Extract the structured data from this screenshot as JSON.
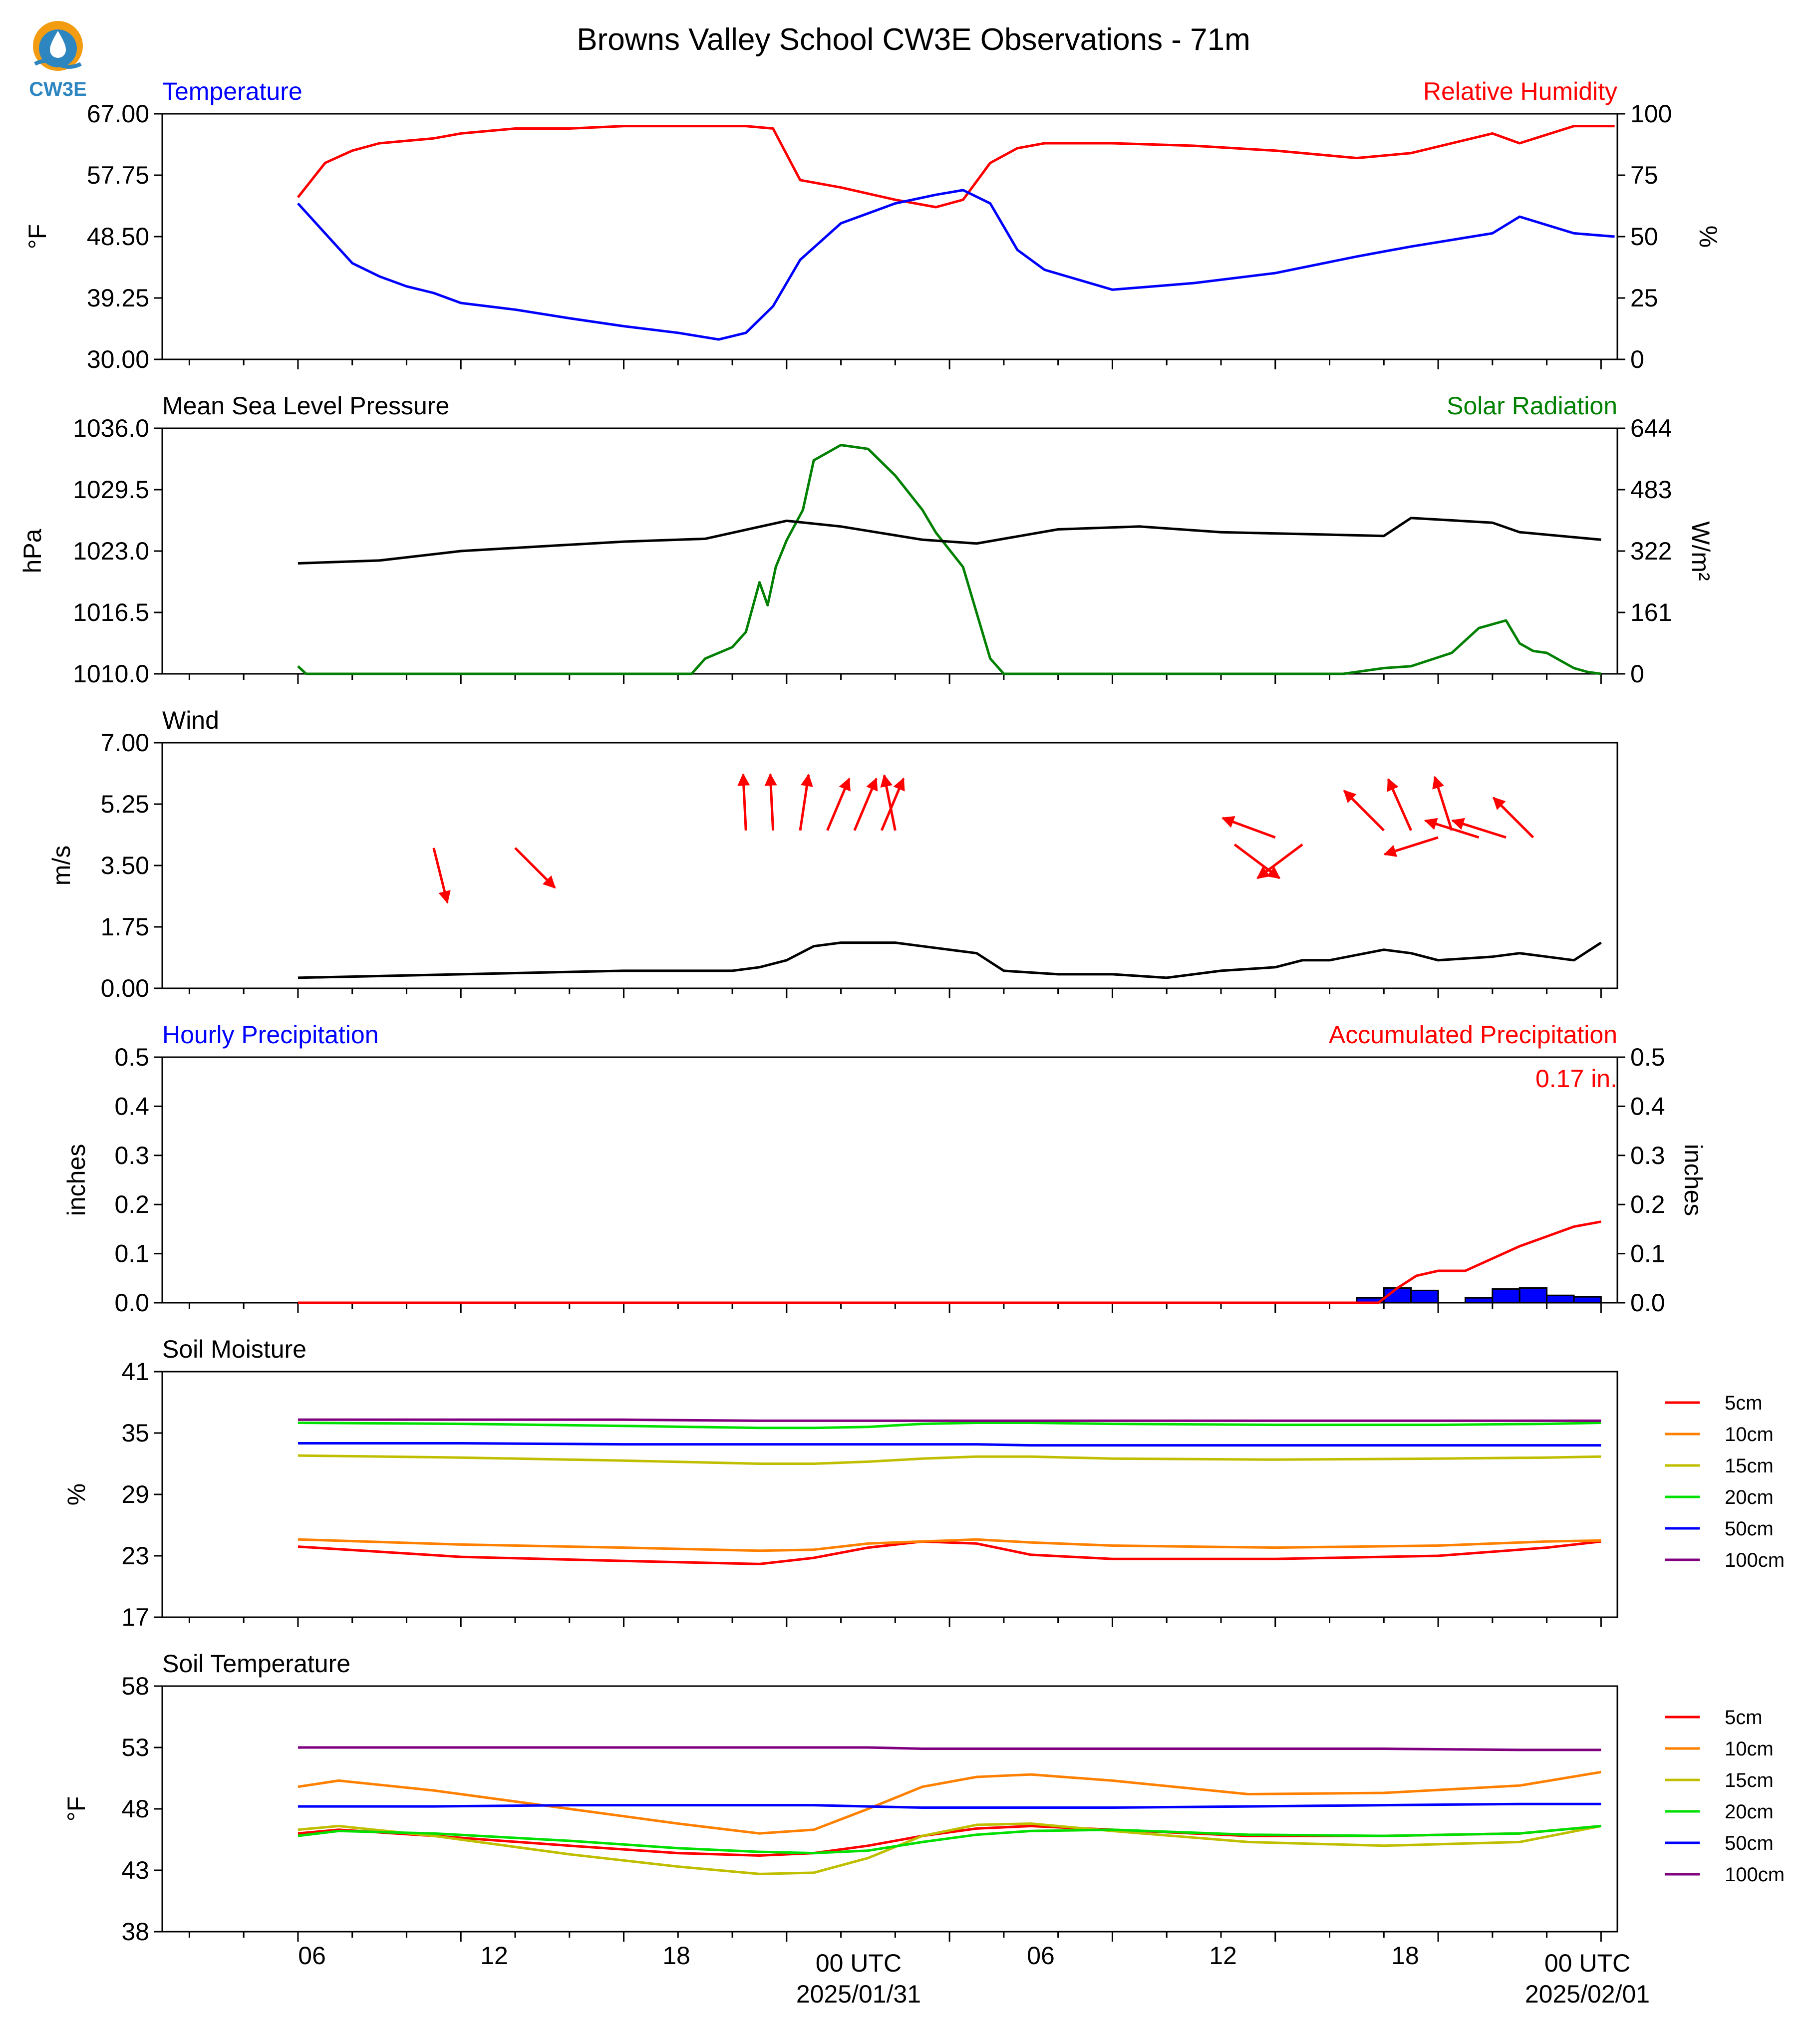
{
  "figure": {
    "title": "Browns Valley School CW3E Observations - 71m",
    "logo_text": "CW3E",
    "x_tick_labels": [
      "06",
      "12",
      "18",
      "00 UTC",
      "06",
      "12",
      "18",
      "00 UTC"
    ],
    "x_date_labels": [
      "2025/01/31",
      "2025/02/01"
    ]
  },
  "colors": {
    "temperature": "#0000ff",
    "relative_humidity": "#ff0000",
    "pressure": "#000000",
    "solar": "#008000",
    "wind": "#000000",
    "wind_arrows": "#ff0000",
    "hourly_precip": "#0000ff",
    "accum_precip": "#ff0000",
    "soil_5cm": "#ff0000",
    "soil_10cm": "#ff8000",
    "soil_15cm": "#bfbf00",
    "soil_20cm": "#00e000",
    "soil_50cm": "#0000ff",
    "soil_100cm": "#800080",
    "logo": "#2e86c1",
    "logo_accent": "#f39c12"
  },
  "chart_data": [
    {
      "type": "line",
      "panel": "temperature_rh",
      "title_left": "Temperature",
      "title_right": "Relative Humidity",
      "ylabel_left": "°F",
      "ylabel_right": "%",
      "ylim_left": [
        30,
        67
      ],
      "ylim_right": [
        0,
        100
      ],
      "yticks_left": [
        "67.00",
        "57.75",
        "48.50",
        "39.25",
        "30.00"
      ],
      "yticks_right": [
        "100",
        "75",
        "50",
        "25",
        "0"
      ],
      "x_hours": [
        0,
        1,
        2,
        3,
        4,
        5,
        6,
        8,
        10,
        12,
        14,
        15.5,
        16.5,
        17.5,
        18.5,
        20,
        22,
        23.5,
        24.5,
        25.5,
        26.5,
        27.5,
        30,
        33,
        36,
        39,
        41,
        44,
        45,
        47,
        48.5
      ],
      "series": [
        {
          "name": "Temperature",
          "axis": "left",
          "values": [
            53.5,
            49.0,
            44.5,
            42.5,
            41.0,
            40.0,
            38.5,
            37.5,
            36.2,
            35.0,
            34.0,
            33.0,
            34.0,
            38.0,
            45.0,
            50.5,
            53.5,
            54.8,
            55.5,
            53.5,
            46.5,
            43.5,
            40.5,
            41.5,
            43.0,
            45.5,
            47.0,
            49.0,
            51.5,
            49.0,
            48.5
          ]
        },
        {
          "name": "Relative Humidity",
          "axis": "right",
          "values": [
            66,
            80,
            85,
            88,
            89,
            90,
            92,
            94,
            94,
            95,
            95,
            95,
            95,
            94,
            73,
            70,
            65,
            62,
            65,
            80,
            86,
            88,
            88,
            87,
            85,
            82,
            84,
            92,
            88,
            95,
            95
          ]
        }
      ]
    },
    {
      "type": "line",
      "panel": "pressure_solar",
      "title_left": "Mean Sea Level Pressure",
      "title_right": "Solar Radiation",
      "ylabel_left": "hPa",
      "ylabel_right": "W/m²",
      "ylim_left": [
        1010,
        1036
      ],
      "ylim_right": [
        0,
        644
      ],
      "yticks_left": [
        "1036.0",
        "1029.5",
        "1023.0",
        "1016.5",
        "1010.0"
      ],
      "yticks_right": [
        "644",
        "483",
        "322",
        "161",
        "0"
      ],
      "series": [
        {
          "name": "Mean Sea Level Pressure",
          "axis": "left",
          "x_hours": [
            0,
            3,
            6,
            9,
            12,
            15,
            18,
            20,
            23,
            25,
            28,
            31,
            34,
            37,
            40,
            41,
            44,
            45,
            48
          ],
          "values": [
            1021.7,
            1022.0,
            1023.0,
            1023.5,
            1024.0,
            1024.3,
            1026.2,
            1025.6,
            1024.2,
            1023.8,
            1025.3,
            1025.6,
            1025.0,
            1024.8,
            1024.6,
            1026.5,
            1026.0,
            1025.0,
            1024.2
          ]
        },
        {
          "name": "Solar Radiation",
          "axis": "right",
          "x_hours": [
            0,
            0.3,
            14.5,
            15,
            16,
            16.5,
            17,
            17.3,
            17.6,
            18,
            18.6,
            19,
            20,
            21,
            22,
            23,
            23.5,
            24.5,
            25,
            25.5,
            26,
            38.5,
            40,
            41,
            42.5,
            43.5,
            44.5,
            45,
            45.5,
            46,
            46.5,
            47,
            47.5,
            48
          ],
          "values": [
            20,
            0,
            0,
            40,
            70,
            110,
            240,
            180,
            280,
            350,
            430,
            560,
            600,
            590,
            520,
            430,
            370,
            280,
            160,
            40,
            0,
            0,
            15,
            20,
            55,
            120,
            140,
            80,
            60,
            55,
            35,
            15,
            5,
            0
          ]
        }
      ]
    },
    {
      "type": "line",
      "panel": "wind",
      "title_left": "Wind",
      "ylabel_left": "m/s",
      "ylim": [
        0,
        7
      ],
      "yticks": [
        "7.00",
        "5.25",
        "3.50",
        "1.75",
        "0.00"
      ],
      "x_hours": [
        0,
        6,
        12,
        16,
        17,
        18,
        19,
        20,
        22,
        23,
        24,
        25,
        26,
        28,
        30,
        32,
        34,
        36,
        37,
        38,
        40,
        41,
        42,
        44,
        45,
        46,
        47,
        48
      ],
      "series": [
        {
          "name": "Wind Speed",
          "values": [
            0.3,
            0.4,
            0.5,
            0.5,
            0.6,
            0.8,
            1.2,
            1.3,
            1.3,
            1.2,
            1.1,
            1.0,
            0.5,
            0.4,
            0.4,
            0.3,
            0.5,
            0.6,
            0.8,
            0.8,
            1.1,
            1.0,
            0.8,
            0.9,
            1.0,
            0.9,
            0.8,
            1.3
          ]
        }
      ],
      "arrows": [
        {
          "x": 5.0,
          "u": 0.25,
          "v": -1.0,
          "len": 2.0,
          "y_start": 4.0
        },
        {
          "x": 8.0,
          "u": 0.7,
          "v": -0.7,
          "len": 2.0,
          "y_start": 4.0
        },
        {
          "x": 16.5,
          "u": -0.05,
          "v": 1.0,
          "len": 2.0,
          "y_start": 4.5
        },
        {
          "x": 17.5,
          "u": -0.05,
          "v": 1.0,
          "len": 2.0,
          "y_start": 4.5
        },
        {
          "x": 18.5,
          "u": 0.15,
          "v": 1.0,
          "len": 2.0,
          "y_start": 4.5
        },
        {
          "x": 19.5,
          "u": 0.4,
          "v": 0.95,
          "len": 2.0,
          "y_start": 4.5
        },
        {
          "x": 20.5,
          "u": 0.4,
          "v": 0.95,
          "len": 2.0,
          "y_start": 4.5
        },
        {
          "x": 21.5,
          "u": 0.4,
          "v": 0.95,
          "len": 2.0,
          "y_start": 4.5
        },
        {
          "x": 22.0,
          "u": -0.2,
          "v": 1.0,
          "len": 2.0,
          "y_start": 4.5
        },
        {
          "x": 34.5,
          "u": 0.8,
          "v": -0.6,
          "len": 2.0,
          "y_start": 4.1
        },
        {
          "x": 36.0,
          "u": -0.95,
          "v": 0.35,
          "len": 2.0,
          "y_start": 4.3
        },
        {
          "x": 37.0,
          "u": -0.8,
          "v": -0.6,
          "len": 2.0,
          "y_start": 4.1
        },
        {
          "x": 40.0,
          "u": -0.7,
          "v": 0.7,
          "len": 2.0,
          "y_start": 4.5
        },
        {
          "x": 41.0,
          "u": -0.4,
          "v": 0.9,
          "len": 2.0,
          "y_start": 4.5
        },
        {
          "x": 42.0,
          "u": -0.95,
          "v": -0.3,
          "len": 2.0,
          "y_start": 4.3
        },
        {
          "x": 42.5,
          "u": -0.3,
          "v": 0.95,
          "len": 2.0,
          "y_start": 4.5
        },
        {
          "x": 43.5,
          "u": -0.95,
          "v": 0.3,
          "len": 2.0,
          "y_start": 4.3
        },
        {
          "x": 44.5,
          "u": -0.95,
          "v": 0.3,
          "len": 2.0,
          "y_start": 4.3
        },
        {
          "x": 45.5,
          "u": -0.7,
          "v": 0.7,
          "len": 2.0,
          "y_start": 4.3
        }
      ]
    },
    {
      "type": "bar",
      "panel": "precipitation",
      "title_left": "Hourly Precipitation",
      "title_right": "Accumulated Precipitation",
      "ylabel_left": "inches",
      "ylabel_right": "inches",
      "ylim": [
        0,
        0.5
      ],
      "yticks": [
        "0.5",
        "0.4",
        "0.3",
        "0.2",
        "0.1",
        "0.0"
      ],
      "total_label": "0.17 in.",
      "series": [
        {
          "name": "Hourly Precipitation",
          "bars": [
            {
              "x0": 39,
              "x1": 40,
              "value": 0.01
            },
            {
              "x0": 40,
              "x1": 41,
              "value": 0.03
            },
            {
              "x0": 41,
              "x1": 42,
              "value": 0.025
            },
            {
              "x0": 43,
              "x1": 44,
              "value": 0.01
            },
            {
              "x0": 44,
              "x1": 45,
              "value": 0.028
            },
            {
              "x0": 45,
              "x1": 46,
              "value": 0.03
            },
            {
              "x0": 46,
              "x1": 47,
              "value": 0.015
            },
            {
              "x0": 47,
              "x1": 48,
              "value": 0.012
            }
          ]
        },
        {
          "name": "Accumulated Precipitation",
          "x_hours": [
            0,
            39.8,
            40.5,
            41.2,
            42,
            43,
            44,
            45,
            46,
            47,
            48
          ],
          "values": [
            0,
            0,
            0.03,
            0.055,
            0.065,
            0.065,
            0.09,
            0.115,
            0.135,
            0.155,
            0.165
          ]
        }
      ]
    },
    {
      "type": "line",
      "panel": "soil_moisture",
      "title_left": "Soil Moisture",
      "ylabel_left": "%",
      "ylim": [
        17,
        41
      ],
      "yticks": [
        "41",
        "35",
        "29",
        "23",
        "17"
      ],
      "x_hours": [
        0,
        6,
        12,
        17,
        19,
        21,
        23,
        25,
        27,
        30,
        36,
        42,
        46,
        48
      ],
      "series": [
        {
          "name": "5cm",
          "color_key": "soil_5cm",
          "values": [
            23.9,
            22.9,
            22.5,
            22.2,
            22.8,
            23.8,
            24.4,
            24.2,
            23.1,
            22.7,
            22.7,
            23.0,
            23.8,
            24.4
          ]
        },
        {
          "name": "10cm",
          "color_key": "soil_10cm",
          "values": [
            24.6,
            24.1,
            23.8,
            23.5,
            23.6,
            24.2,
            24.4,
            24.6,
            24.3,
            24.0,
            23.8,
            24.0,
            24.4,
            24.5
          ]
        },
        {
          "name": "15cm",
          "color_key": "soil_15cm",
          "values": [
            32.8,
            32.6,
            32.3,
            32.0,
            32.0,
            32.2,
            32.5,
            32.7,
            32.7,
            32.5,
            32.4,
            32.5,
            32.6,
            32.7
          ]
        },
        {
          "name": "20cm",
          "color_key": "soil_20cm",
          "values": [
            36.0,
            35.9,
            35.7,
            35.5,
            35.5,
            35.6,
            35.9,
            36.0,
            36.0,
            35.9,
            35.8,
            35.8,
            35.9,
            36.0
          ]
        },
        {
          "name": "50cm",
          "color_key": "soil_50cm",
          "values": [
            34.0,
            34.0,
            33.9,
            33.9,
            33.9,
            33.9,
            33.9,
            33.9,
            33.8,
            33.8,
            33.8,
            33.8,
            33.8,
            33.8
          ]
        },
        {
          "name": "100cm",
          "color_key": "soil_100cm",
          "values": [
            36.3,
            36.3,
            36.3,
            36.2,
            36.2,
            36.2,
            36.2,
            36.2,
            36.2,
            36.2,
            36.2,
            36.2,
            36.2,
            36.2
          ]
        }
      ]
    },
    {
      "type": "line",
      "panel": "soil_temperature",
      "title_left": "Soil Temperature",
      "ylabel_left": "°F",
      "ylim": [
        38,
        58
      ],
      "yticks": [
        "58",
        "53",
        "48",
        "43",
        "38"
      ],
      "x_hours": [
        0,
        1.5,
        5,
        10,
        14,
        17,
        19,
        21,
        23,
        25,
        27,
        30,
        35,
        40,
        45,
        48
      ],
      "series": [
        {
          "name": "5cm",
          "color_key": "soil_5cm",
          "values": [
            46.0,
            46.3,
            45.8,
            45.0,
            44.4,
            44.2,
            44.4,
            45.0,
            45.8,
            46.4,
            46.6,
            46.3,
            45.8,
            45.8,
            46.0,
            46.6
          ]
        },
        {
          "name": "10cm",
          "color_key": "soil_10cm",
          "values": [
            49.8,
            50.3,
            49.5,
            48.0,
            46.8,
            46.0,
            46.3,
            48.0,
            49.8,
            50.6,
            50.8,
            50.3,
            49.2,
            49.3,
            49.9,
            51.0
          ]
        },
        {
          "name": "15cm",
          "color_key": "soil_15cm",
          "values": [
            46.3,
            46.6,
            45.8,
            44.3,
            43.3,
            42.7,
            42.8,
            44.0,
            45.8,
            46.7,
            46.8,
            46.2,
            45.3,
            45.0,
            45.3,
            46.6
          ]
        },
        {
          "name": "20cm",
          "color_key": "soil_20cm",
          "values": [
            45.8,
            46.2,
            46.0,
            45.4,
            44.8,
            44.5,
            44.4,
            44.6,
            45.3,
            45.9,
            46.2,
            46.3,
            45.9,
            45.8,
            46.0,
            46.6
          ]
        },
        {
          "name": "50cm",
          "color_key": "soil_50cm",
          "values": [
            48.2,
            48.2,
            48.2,
            48.3,
            48.3,
            48.3,
            48.3,
            48.2,
            48.1,
            48.1,
            48.1,
            48.1,
            48.2,
            48.3,
            48.4,
            48.4
          ]
        },
        {
          "name": "100cm",
          "color_key": "soil_100cm",
          "values": [
            53.0,
            53.0,
            53.0,
            53.0,
            53.0,
            53.0,
            53.0,
            53.0,
            52.9,
            52.9,
            52.9,
            52.9,
            52.9,
            52.9,
            52.8,
            52.8
          ]
        }
      ]
    }
  ]
}
